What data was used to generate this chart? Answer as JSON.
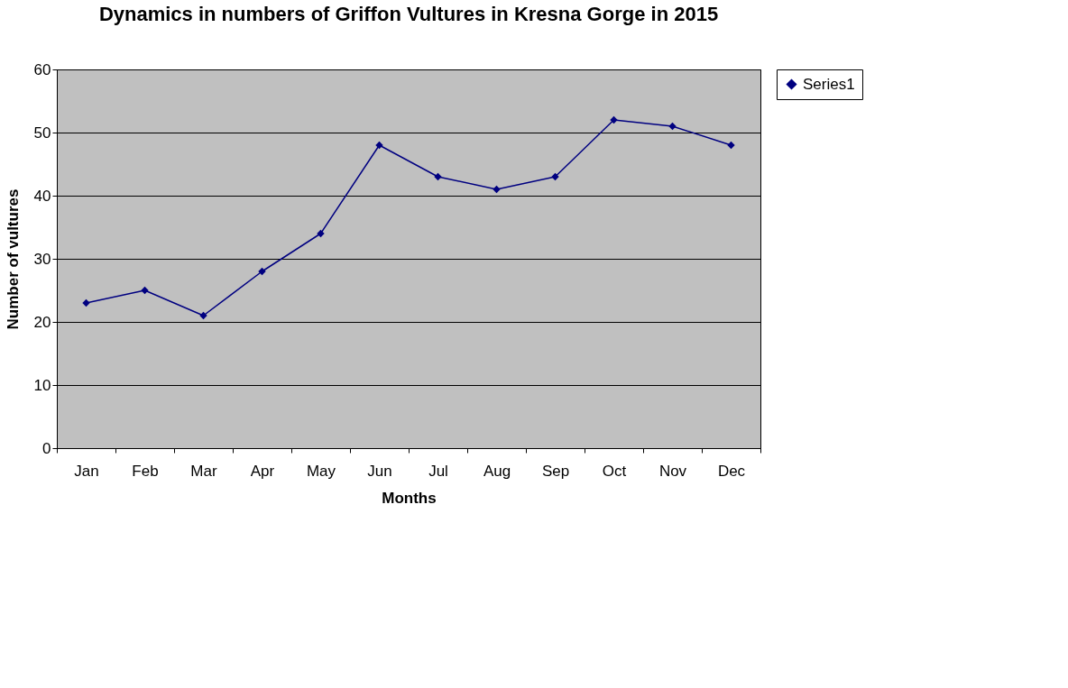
{
  "chart_data": {
    "type": "line",
    "title": "Dynamics in numbers of Griffon Vultures in Kresna Gorge in 2015",
    "xlabel": "Months",
    "ylabel": "Number of vultures",
    "categories": [
      "Jan",
      "Feb",
      "Mar",
      "Apr",
      "May",
      "Jun",
      "Jul",
      "Aug",
      "Sep",
      "Oct",
      "Nov",
      "Dec"
    ],
    "series": [
      {
        "name": "Series1",
        "color": "#000080",
        "values": [
          23,
          25,
          21,
          28,
          34,
          48,
          43,
          41,
          43,
          52,
          51,
          48
        ]
      }
    ],
    "ylim": [
      0,
      60
    ],
    "yticks": [
      0,
      10,
      20,
      30,
      40,
      50,
      60
    ],
    "grid": "y",
    "legend": "right",
    "marker": "diamond",
    "line_style": "solid"
  }
}
